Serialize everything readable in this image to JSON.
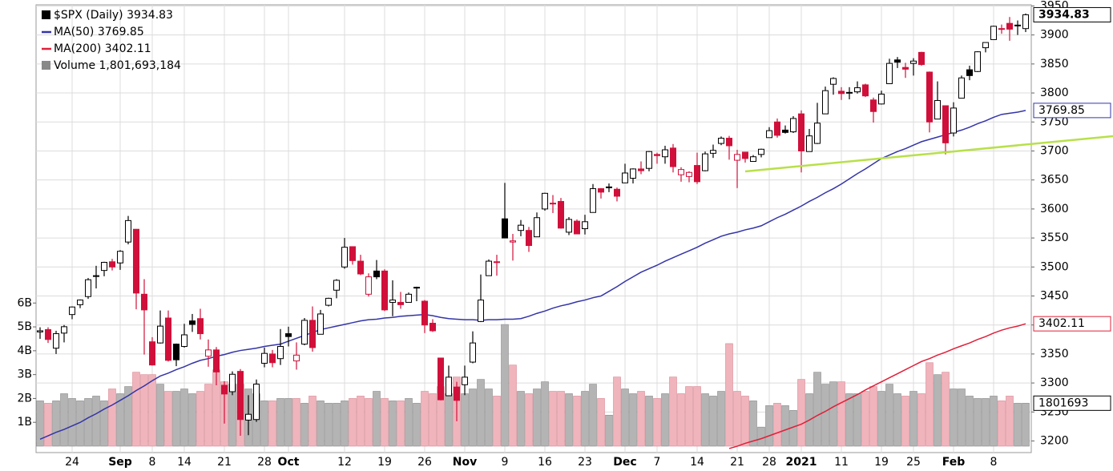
{
  "chart_data": {
    "type": "candlestick",
    "legend": [
      "$SPX (Daily) 3934.83",
      "MA(50) 3769.85",
      "MA(200) 3402.11",
      "Volume 1,801,693,184"
    ],
    "categories": [
      null,
      null,
      null,
      null,
      "24",
      null,
      null,
      null,
      null,
      null,
      "Sep",
      null,
      null,
      null,
      "8",
      null,
      null,
      null,
      "14",
      null,
      null,
      null,
      null,
      "21",
      null,
      null,
      null,
      null,
      "28",
      null,
      null,
      "Oct",
      null,
      null,
      null,
      null,
      null,
      null,
      "12",
      null,
      null,
      null,
      null,
      "19",
      null,
      null,
      null,
      null,
      "26",
      null,
      null,
      null,
      null,
      "Nov",
      null,
      null,
      null,
      null,
      "9",
      null,
      null,
      null,
      null,
      "16",
      null,
      null,
      null,
      null,
      "23",
      null,
      null,
      null,
      null,
      "Dec",
      null,
      null,
      null,
      "7",
      null,
      null,
      null,
      null,
      "14",
      null,
      null,
      null,
      null,
      "21",
      null,
      null,
      null,
      "28",
      null,
      null,
      null,
      "2021",
      null,
      null,
      null,
      null,
      "11",
      null,
      null,
      null,
      null,
      "19",
      null,
      null,
      null,
      "25",
      null,
      null,
      null,
      null,
      "Feb",
      null,
      null,
      null,
      null,
      "8",
      null,
      null,
      null,
      null
    ],
    "open": [
      3388,
      3392,
      3360,
      3386,
      3418,
      3435,
      3449,
      3485,
      3494,
      3509,
      3507,
      3543,
      3565,
      3453,
      3371,
      3369,
      3412,
      3367,
      3363,
      3407,
      3411,
      3346,
      3357,
      3296,
      3285,
      3320,
      3236,
      3237,
      3334,
      3350,
      3342,
      3385,
      3338,
      3367,
      3408,
      3384,
      3434,
      3460,
      3500,
      3535,
      3510,
      3453,
      3493,
      3493,
      3439,
      3439,
      3439,
      3464,
      3441,
      3403,
      3343,
      3278,
      3293,
      3297,
      3336,
      3406,
      3485,
      3508,
      3583,
      3543,
      3563,
      3563,
      3552,
      3600,
      3610,
      3613,
      3560,
      3579,
      3566,
      3594,
      3635,
      3638,
      3634,
      3645,
      3653,
      3669,
      3670,
      3694,
      3690,
      3705,
      3659,
      3656,
      3675,
      3666,
      3696,
      3713,
      3722,
      3684,
      3698,
      3682,
      3694,
      3723,
      3750,
      3736,
      3733,
      3764,
      3699,
      3713,
      3764,
      3815,
      3803,
      3801,
      3802,
      3814,
      3788,
      3781,
      3816,
      3857,
      3844,
      3851,
      3870,
      3836,
      3755,
      3778,
      3731,
      3791,
      3840,
      3837,
      3878,
      3892,
      3910,
      3920,
      3917,
      3911
    ],
    "high": [
      3396,
      3396,
      3390,
      3400,
      3432,
      3444,
      3481,
      3502,
      3509,
      3514,
      3529,
      3588,
      3565,
      3479,
      3379,
      3425,
      3425,
      3368,
      3402,
      3419,
      3428,
      3375,
      3362,
      3303,
      3320,
      3324,
      3279,
      3306,
      3361,
      3357,
      3393,
      3397,
      3370,
      3412,
      3432,
      3426,
      3447,
      3479,
      3550,
      3535,
      3521,
      3489,
      3512,
      3496,
      3477,
      3457,
      3456,
      3466,
      3443,
      3410,
      3342,
      3330,
      3302,
      3330,
      3389,
      3487,
      3513,
      3521,
      3645,
      3557,
      3581,
      3569,
      3594,
      3628,
      3624,
      3619,
      3586,
      3582,
      3590,
      3643,
      3636,
      3644,
      3637,
      3678,
      3670,
      3682,
      3700,
      3697,
      3709,
      3712,
      3672,
      3665,
      3697,
      3699,
      3711,
      3725,
      3726,
      3702,
      3698,
      3693,
      3704,
      3741,
      3756,
      3744,
      3760,
      3770,
      3738,
      3783,
      3811,
      3827,
      3810,
      3810,
      3820,
      3816,
      3792,
      3804,
      3859,
      3862,
      3852,
      3860,
      3871,
      3837,
      3820,
      3778,
      3784,
      3830,
      3847,
      3872,
      3887,
      3916,
      3918,
      3931,
      3925,
      3937
    ],
    "low": [
      3376,
      3369,
      3350,
      3370,
      3410,
      3429,
      3445,
      3463,
      3484,
      3494,
      3495,
      3539,
      3427,
      3349,
      3330,
      3368,
      3337,
      3329,
      3361,
      3388,
      3375,
      3328,
      3296,
      3230,
      3279,
      3209,
      3210,
      3233,
      3327,
      3327,
      3331,
      3363,
      3323,
      3365,
      3354,
      3384,
      3432,
      3446,
      3497,
      3504,
      3486,
      3449,
      3479,
      3424,
      3415,
      3428,
      3440,
      3441,
      3386,
      3388,
      3270,
      3278,
      3234,
      3279,
      3334,
      3405,
      3485,
      3485,
      3551,
      3511,
      3553,
      3526,
      3552,
      3597,
      3593,
      3566,
      3555,
      3557,
      3556,
      3594,
      3618,
      3629,
      3613,
      3645,
      3644,
      3660,
      3665,
      3678,
      3678,
      3663,
      3647,
      3646,
      3643,
      3665,
      3688,
      3710,
      3685,
      3636,
      3680,
      3682,
      3689,
      3723,
      3723,
      3730,
      3731,
      3663,
      3699,
      3712,
      3764,
      3797,
      3788,
      3789,
      3799,
      3793,
      3749,
      3780,
      3816,
      3843,
      3826,
      3830,
      3847,
      3732,
      3755,
      3694,
      3725,
      3791,
      3822,
      3836,
      3870,
      3892,
      3902,
      3890,
      3900,
      3905
    ],
    "close": [
      3390,
      3375,
      3385,
      3397,
      3431,
      3443,
      3478,
      3484,
      3508,
      3500,
      3527,
      3580,
      3455,
      3426,
      3331,
      3398,
      3339,
      3340,
      3383,
      3401,
      3385,
      3357,
      3319,
      3281,
      3315,
      3237,
      3246,
      3298,
      3351,
      3335,
      3363,
      3380,
      3348,
      3408,
      3361,
      3419,
      3446,
      3477,
      3534,
      3511,
      3488,
      3483,
      3483,
      3426,
      3443,
      3435,
      3453,
      3465,
      3400,
      3390,
      3271,
      3310,
      3270,
      3310,
      3369,
      3443,
      3510,
      3509,
      3550,
      3545,
      3572,
      3537,
      3585,
      3627,
      3610,
      3567,
      3582,
      3557,
      3578,
      3635,
      3629,
      3638,
      3622,
      3662,
      3669,
      3666,
      3699,
      3692,
      3702,
      3673,
      3668,
      3663,
      3647,
      3695,
      3701,
      3722,
      3709,
      3694,
      3687,
      3690,
      3703,
      3735,
      3727,
      3732,
      3756,
      3700,
      3726,
      3748,
      3804,
      3825,
      3799,
      3801,
      3809,
      3795,
      3768,
      3798,
      3851,
      3853,
      3841,
      3855,
      3849,
      3750,
      3787,
      3714,
      3774,
      3826,
      3830,
      3871,
      3887,
      3915,
      3911,
      3910,
      3916,
      3934.83
    ],
    "up_color": "#000000",
    "down_color": "#d0103a",
    "series": [
      {
        "name": "MA(50)",
        "color": "#3434a8",
        "values": [
          3203,
          3209,
          3215,
          3220,
          3226,
          3232,
          3240,
          3247,
          3255,
          3262,
          3270,
          3278,
          3287,
          3295,
          3304,
          3312,
          3317,
          3323,
          3328,
          3334,
          3339,
          3342,
          3346,
          3349,
          3353,
          3356,
          3358,
          3360,
          3363,
          3365,
          3367,
          3372,
          3377,
          3382,
          3387,
          3392,
          3395,
          3398,
          3401,
          3404,
          3407,
          3409,
          3410,
          3412,
          3413,
          3415,
          3416,
          3417,
          3418,
          3416,
          3413,
          3411,
          3410,
          3409,
          3409,
          3408,
          3409,
          3409,
          3410,
          3410,
          3411,
          3415,
          3420,
          3424,
          3429,
          3433,
          3436,
          3440,
          3443,
          3447,
          3450,
          3458,
          3466,
          3475,
          3483,
          3491,
          3497,
          3503,
          3510,
          3516,
          3522,
          3528,
          3534,
          3541,
          3547,
          3553,
          3557,
          3560,
          3564,
          3567,
          3571,
          3578,
          3585,
          3591,
          3598,
          3605,
          3613,
          3620,
          3628,
          3635,
          3643,
          3652,
          3661,
          3669,
          3678,
          3687,
          3693,
          3699,
          3704,
          3710,
          3716,
          3720,
          3724,
          3728,
          3732,
          3736,
          3741,
          3747,
          3752,
          3758,
          3763,
          3765,
          3767,
          3769.85
        ]
      },
      {
        "name": "MA(200)",
        "color": "#e0203a",
        "values": [
          null,
          null,
          null,
          null,
          null,
          null,
          null,
          null,
          null,
          null,
          null,
          null,
          null,
          null,
          null,
          null,
          null,
          null,
          null,
          null,
          null,
          null,
          null,
          null,
          null,
          null,
          null,
          null,
          null,
          null,
          null,
          null,
          null,
          null,
          null,
          null,
          null,
          null,
          null,
          null,
          null,
          null,
          null,
          null,
          null,
          null,
          null,
          null,
          null,
          null,
          null,
          null,
          null,
          null,
          null,
          null,
          null,
          null,
          null,
          null,
          null,
          null,
          null,
          null,
          null,
          null,
          null,
          null,
          null,
          null,
          null,
          null,
          null,
          null,
          null,
          null,
          null,
          null,
          null,
          null,
          null,
          null,
          null,
          null,
          null,
          null,
          3187,
          3191,
          3196,
          3200,
          3204,
          3209,
          3214,
          3219,
          3224,
          3229,
          3236,
          3244,
          3251,
          3259,
          3266,
          3273,
          3280,
          3288,
          3295,
          3302,
          3309,
          3316,
          3323,
          3330,
          3337,
          3342,
          3348,
          3353,
          3359,
          3364,
          3369,
          3375,
          3380,
          3386,
          3391,
          3395,
          3398,
          3402.11
        ]
      }
    ],
    "volume": {
      "values": [
        1.9,
        1.8,
        1.9,
        2.2,
        2.0,
        1.9,
        2.0,
        2.1,
        1.9,
        2.4,
        2.2,
        2.5,
        3.1,
        3.0,
        3.0,
        2.6,
        2.3,
        2.3,
        2.4,
        2.2,
        2.3,
        2.6,
        3.2,
        2.7,
        2.6,
        2.6,
        2.4,
        2.2,
        1.9,
        1.9,
        2.0,
        2.0,
        2.0,
        1.8,
        2.1,
        1.9,
        1.8,
        1.8,
        1.9,
        2.0,
        2.1,
        2.0,
        2.3,
        2.0,
        1.9,
        1.9,
        2.0,
        1.8,
        2.3,
        2.2,
        2.5,
        2.2,
        2.9,
        2.2,
        2.4,
        2.8,
        2.4,
        2.1,
        5.1,
        3.4,
        2.3,
        2.2,
        2.4,
        2.7,
        2.3,
        2.3,
        2.2,
        2.1,
        2.3,
        2.6,
        2.0,
        1.3,
        2.9,
        2.4,
        2.2,
        2.3,
        2.1,
        2.0,
        2.2,
        2.9,
        2.2,
        2.5,
        2.5,
        2.2,
        2.1,
        2.3,
        4.3,
        2.3,
        2.1,
        1.9,
        0.8,
        1.7,
        1.8,
        1.7,
        1.5,
        2.8,
        2.2,
        3.1,
        2.6,
        2.7,
        2.7,
        2.2,
        2.2,
        2.3,
        2.5,
        2.3,
        2.6,
        2.2,
        2.1,
        2.3,
        2.2,
        3.5,
        3.0,
        3.1,
        2.4,
        2.4,
        2.1,
        2.0,
        2.0,
        2.1,
        1.9,
        2.1,
        1.8,
        1.801693184
      ],
      "last_value_label": "1801693",
      "up_color": "#b4b4b4",
      "down_color": "#f0b4bc",
      "vlim": [
        0,
        18.5
      ],
      "ticks": [
        {
          "value": 1,
          "label": "1B"
        },
        {
          "value": 2,
          "label": "2B"
        },
        {
          "value": 3,
          "label": "3B"
        },
        {
          "value": 4,
          "label": "4B"
        },
        {
          "value": 5,
          "label": "5B"
        },
        {
          "value": 6,
          "label": "6B"
        }
      ]
    },
    "ylim": [
      3180,
      3952
    ],
    "yticks": [
      3200,
      3250,
      3300,
      3350,
      3400,
      3450,
      3500,
      3550,
      3600,
      3650,
      3700,
      3750,
      3800,
      3850,
      3900,
      3950
    ],
    "grid": true
  }
}
